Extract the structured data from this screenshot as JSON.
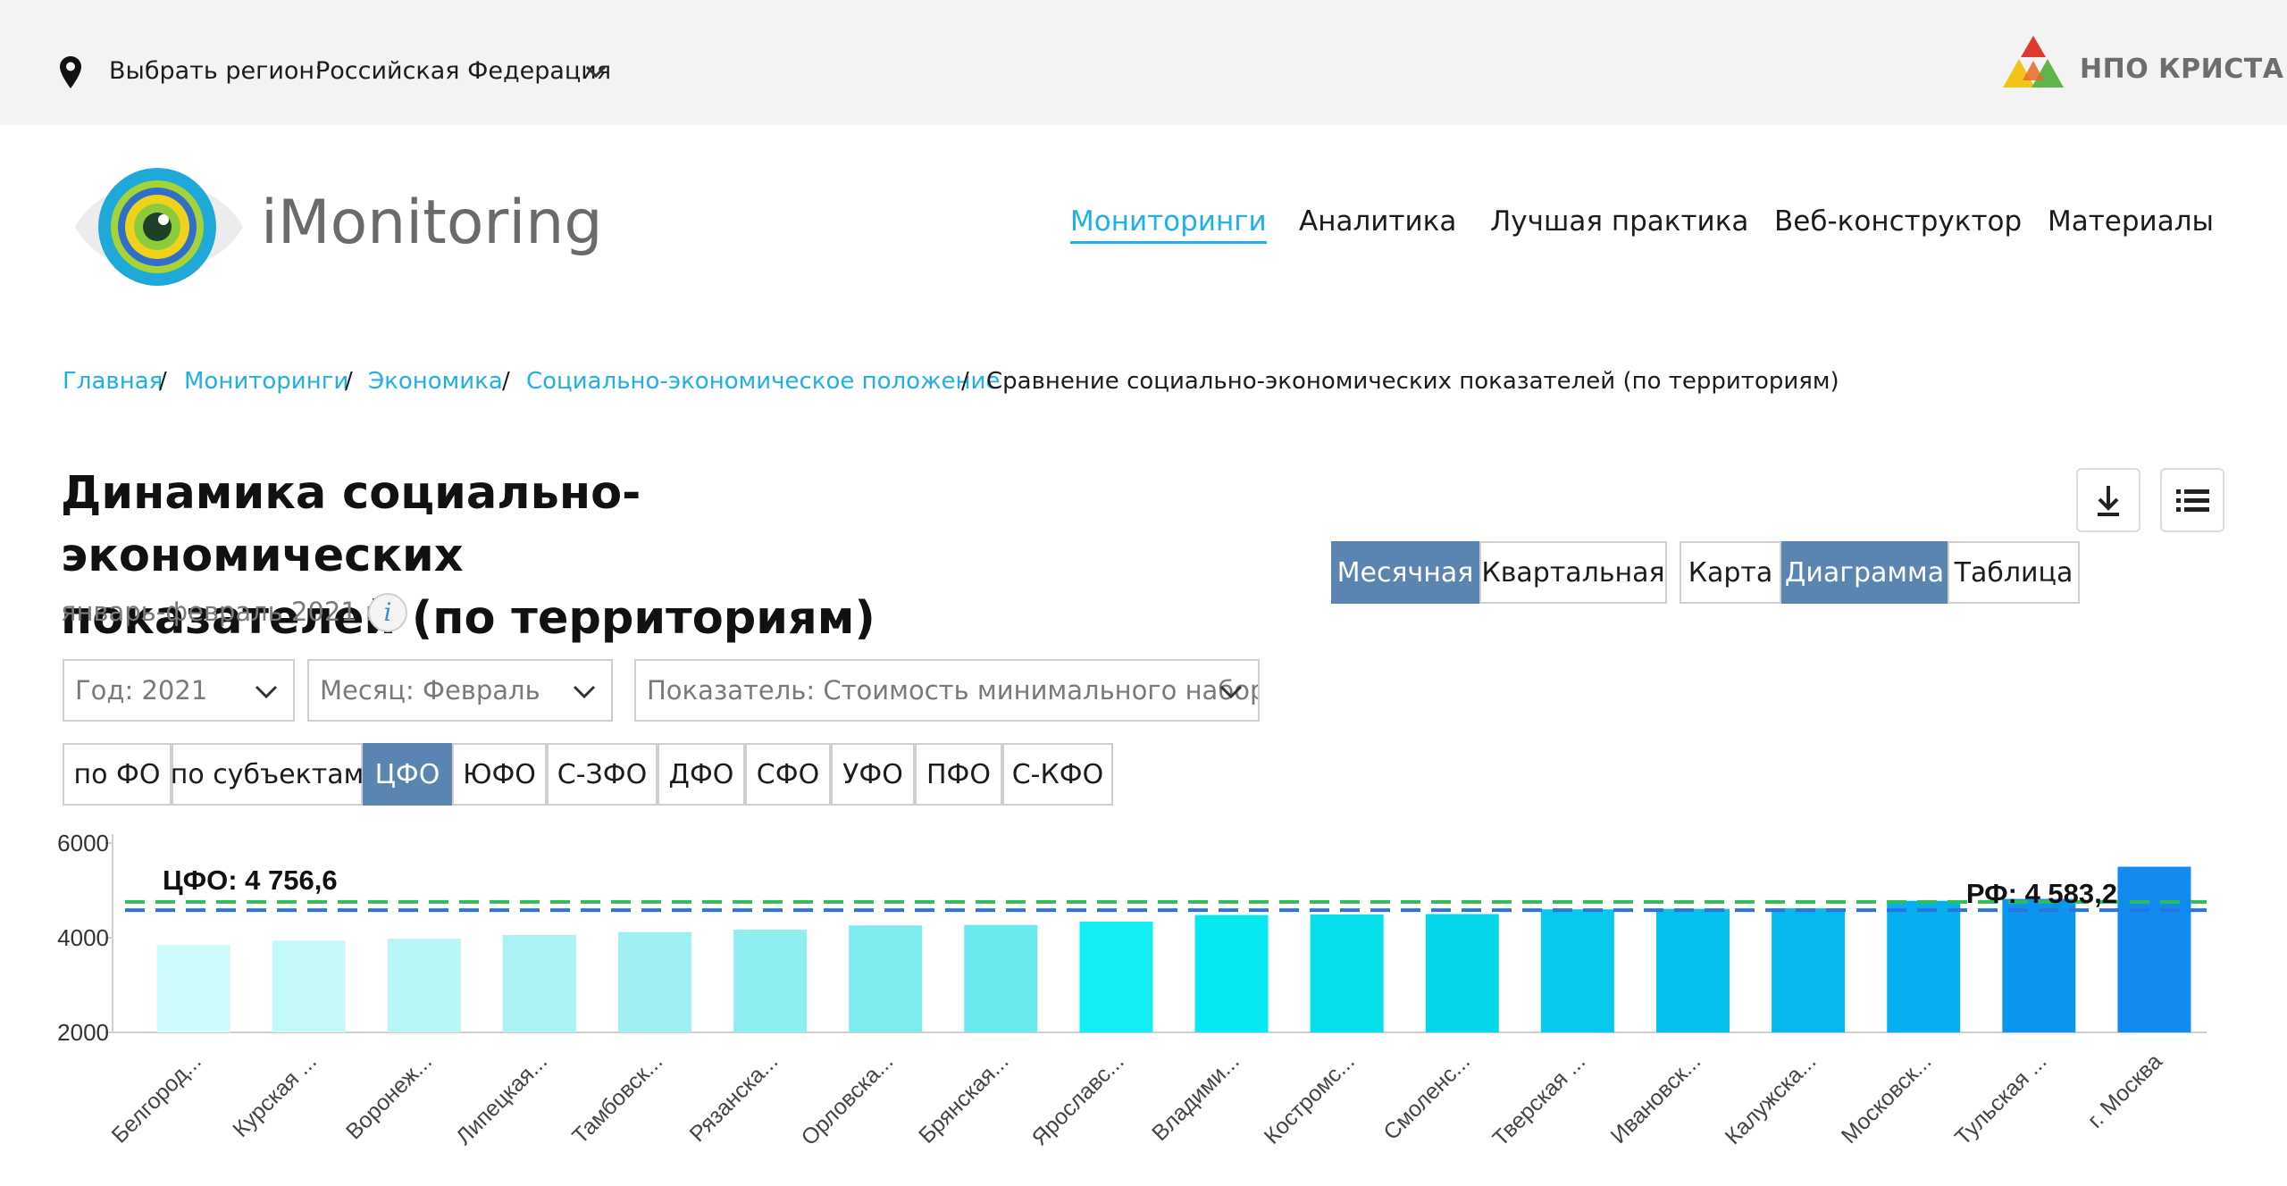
{
  "topbar": {
    "region_label": "Выбрать регион:",
    "region_value": "Российская Федерация",
    "brand": "НПО КРИСТА",
    "icons": [
      "location-pin-icon",
      "chevron-down-icon",
      "krista-logo"
    ]
  },
  "header": {
    "logo_text": "iMonitoring",
    "nav": [
      {
        "label": "Мониторинги",
        "active": true
      },
      {
        "label": "Аналитика",
        "active": false
      },
      {
        "label": "Лучшая практика",
        "active": false
      },
      {
        "label": "Веб-конструктор",
        "active": false
      },
      {
        "label": "Материалы",
        "active": false
      }
    ]
  },
  "breadcrumb": [
    {
      "label": "Главная",
      "link": true
    },
    {
      "label": "Мониторинги",
      "link": true
    },
    {
      "label": "Экономика",
      "link": true
    },
    {
      "label": "Социально-экономическое положение",
      "link": true
    },
    {
      "label": "Сравнение социально-экономических показателей (по территориям)",
      "link": false
    }
  ],
  "page": {
    "title_line1": "Динамика социально-экономических",
    "title_line2": "показателей (по территориям)",
    "period": "январь-февраль 2021 г.",
    "info_symbol": "i"
  },
  "period_buttons": [
    {
      "label": "Месячная",
      "active": true
    },
    {
      "label": "Квартальная",
      "active": false
    }
  ],
  "view_buttons": [
    {
      "label": "Карта",
      "active": false
    },
    {
      "label": "Диаграмма",
      "active": true
    },
    {
      "label": "Таблица",
      "active": false
    }
  ],
  "filters": {
    "year": "Год: 2021",
    "month": "Месяц: Февраль",
    "indicator": "Показатель: Стоимость минимального набор"
  },
  "district_tabs": [
    {
      "label": "по ФО",
      "active": false
    },
    {
      "label": "по субъектам",
      "active": false
    },
    {
      "label": "ЦФО",
      "active": true
    },
    {
      "label": "ЮФО",
      "active": false
    },
    {
      "label": "С-ЗФО",
      "active": false
    },
    {
      "label": "ДФО",
      "active": false
    },
    {
      "label": "СФО",
      "active": false
    },
    {
      "label": "УФО",
      "active": false
    },
    {
      "label": "ПФО",
      "active": false
    },
    {
      "label": "С-КФО",
      "active": false
    }
  ],
  "chart_data": {
    "type": "bar",
    "categories": [
      "Белгород...",
      "Курская ...",
      "Воронеж...",
      "Липецкая...",
      "Тамбовск...",
      "Рязанска...",
      "Орловска...",
      "Брянская...",
      "Ярославс...",
      "Владими...",
      "Костромс...",
      "Смоленс...",
      "Тверская ...",
      "Ивановск...",
      "Калужска...",
      "Московск...",
      "Тульская ...",
      "г. Москва"
    ],
    "values": [
      3850,
      3940,
      3980,
      4060,
      4120,
      4170,
      4260,
      4270,
      4340,
      4480,
      4490,
      4500,
      4600,
      4610,
      4620,
      4780,
      4820,
      5500
    ],
    "colors": [
      "#ccfbfb",
      "#c4f8f9",
      "#b8f5f6",
      "#abf2f4",
      "#9ef0f2",
      "#8feef1",
      "#7eecef",
      "#6ae9ee",
      "#12eef4",
      "#06e8f0",
      "#06e0eb",
      "#04d8e8",
      "#08c8ee",
      "#06c0f0",
      "#06b8f0",
      "#06b0f0",
      "#0a96ef",
      "#128bee"
    ],
    "reference_lines": [
      {
        "label": "ЦФО: 4 756,6",
        "value": 4756.6,
        "color": "#2ebd57"
      },
      {
        "label": "РФ: 4 583,2",
        "value": 4583.2,
        "color": "#2a73e0"
      }
    ],
    "ylim": [
      2000,
      6000
    ],
    "yticks": [
      2000,
      4000,
      6000
    ],
    "ytick_labels": [
      "2000",
      "4000",
      "6000"
    ],
    "grid": false
  }
}
